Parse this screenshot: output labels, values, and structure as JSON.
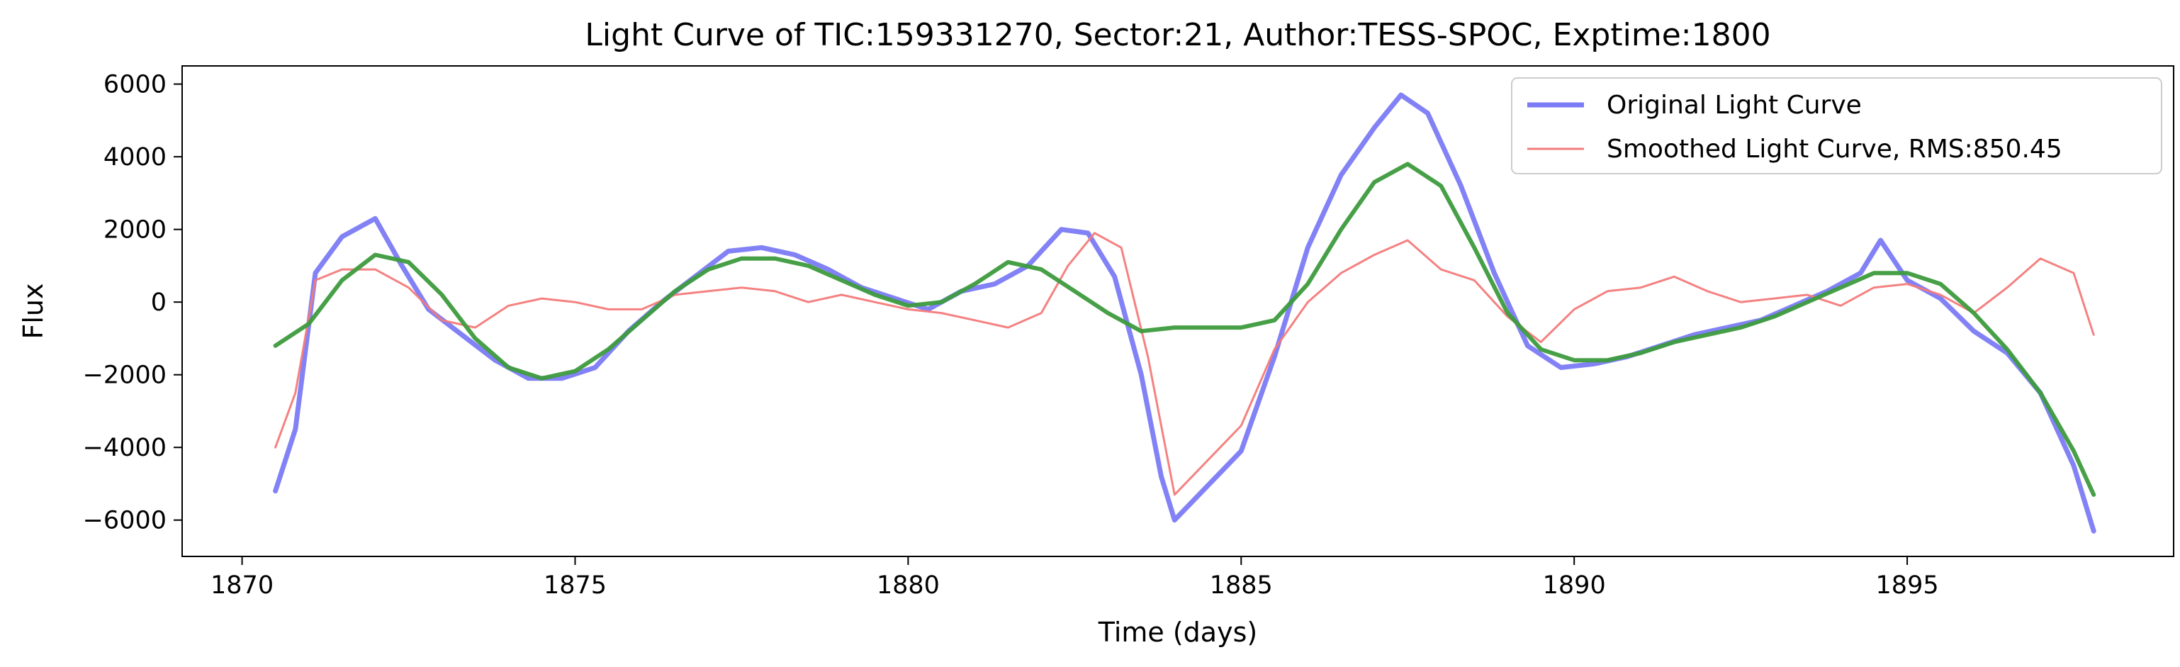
{
  "chart_data": {
    "type": "line",
    "title": "Light Curve of TIC:159331270, Sector:21, Author:TESS-SPOC, Exptime:1800",
    "xlabel": "Time (days)",
    "ylabel": "Flux",
    "xlim": [
      1869.1,
      1899.0
    ],
    "ylim": [
      -7000,
      6500
    ],
    "xticks": [
      1870,
      1875,
      1880,
      1885,
      1890,
      1895
    ],
    "yticks": [
      -6000,
      -4000,
      -2000,
      0,
      2000,
      4000,
      6000
    ],
    "xtick_labels": [
      "1870",
      "1875",
      "1880",
      "1885",
      "1890",
      "1895"
    ],
    "ytick_labels": [
      "−6000",
      "−4000",
      "−2000",
      "0",
      "2000",
      "4000",
      "6000"
    ],
    "grid": false,
    "legend_position": "top-right",
    "series": [
      {
        "name": "Original Light Curve",
        "color": "#7b7bf5",
        "style": "thick",
        "x": [
          1870.5,
          1870.8,
          1871.1,
          1871.5,
          1872.0,
          1872.4,
          1872.8,
          1873.3,
          1873.8,
          1874.3,
          1874.8,
          1875.3,
          1875.8,
          1876.3,
          1876.8,
          1877.3,
          1877.8,
          1878.3,
          1878.8,
          1879.3,
          1879.8,
          1880.3,
          1880.8,
          1881.3,
          1881.8,
          1882.3,
          1882.7,
          1883.1,
          1883.5,
          1883.8,
          1884.0,
          1885.0,
          1885.5,
          1886.0,
          1886.5,
          1887.0,
          1887.4,
          1887.8,
          1888.3,
          1888.8,
          1889.3,
          1889.8,
          1890.3,
          1890.8,
          1891.3,
          1891.8,
          1892.3,
          1892.8,
          1893.3,
          1893.8,
          1894.3,
          1894.6,
          1895.0,
          1895.5,
          1896.0,
          1896.5,
          1897.0,
          1897.5,
          1897.8
        ],
        "y": [
          -5200,
          -3500,
          800,
          1800,
          2300,
          1000,
          -200,
          -900,
          -1600,
          -2100,
          -2100,
          -1800,
          -800,
          0,
          700,
          1400,
          1500,
          1300,
          900,
          400,
          100,
          -200,
          300,
          500,
          1000,
          2000,
          1900,
          700,
          -2000,
          -4800,
          -6000,
          -4100,
          -1500,
          1500,
          3500,
          4800,
          5700,
          5200,
          3200,
          800,
          -1200,
          -1800,
          -1700,
          -1500,
          -1200,
          -900,
          -700,
          -500,
          -100,
          300,
          800,
          1700,
          600,
          100,
          -800,
          -1400,
          -2500,
          -4500,
          -6300
        ]
      },
      {
        "name": "Smoothed Light Curve, RMS:850.45",
        "color": "#f47a7a",
        "style": "thin",
        "x": [
          1870.5,
          1870.8,
          1871.1,
          1871.5,
          1872.0,
          1872.5,
          1873.0,
          1873.5,
          1874.0,
          1874.5,
          1875.0,
          1875.5,
          1876.0,
          1876.5,
          1877.0,
          1877.5,
          1878.0,
          1878.5,
          1879.0,
          1879.5,
          1880.0,
          1880.5,
          1881.0,
          1881.5,
          1882.0,
          1882.4,
          1882.8,
          1883.2,
          1883.6,
          1884.0,
          1885.0,
          1885.5,
          1886.0,
          1886.5,
          1887.0,
          1887.5,
          1888.0,
          1888.5,
          1889.0,
          1889.5,
          1890.0,
          1890.5,
          1891.0,
          1891.5,
          1892.0,
          1892.5,
          1893.0,
          1893.5,
          1894.0,
          1894.5,
          1895.0,
          1895.5,
          1896.0,
          1896.5,
          1897.0,
          1897.5,
          1897.8
        ],
        "y": [
          -4000,
          -2500,
          600,
          900,
          900,
          400,
          -500,
          -700,
          -100,
          100,
          0,
          -200,
          -200,
          200,
          300,
          400,
          300,
          0,
          200,
          0,
          -200,
          -300,
          -500,
          -700,
          -300,
          1000,
          1900,
          1500,
          -1500,
          -5300,
          -3400,
          -1300,
          0,
          800,
          1300,
          1700,
          900,
          600,
          -400,
          -1100,
          -200,
          300,
          400,
          700,
          300,
          0,
          100,
          200,
          -100,
          400,
          500,
          200,
          -300,
          400,
          1200,
          800,
          -900
        ]
      },
      {
        "name": "",
        "color": "#3d9b3d",
        "style": "medium",
        "x": [
          1870.5,
          1871.0,
          1871.5,
          1872.0,
          1872.5,
          1873.0,
          1873.5,
          1874.0,
          1874.5,
          1875.0,
          1875.5,
          1876.0,
          1876.5,
          1877.0,
          1877.5,
          1878.0,
          1878.5,
          1879.0,
          1879.5,
          1880.0,
          1880.5,
          1881.0,
          1881.5,
          1882.0,
          1882.5,
          1883.0,
          1883.5,
          1884.0,
          1884.5,
          1885.0,
          1885.5,
          1886.0,
          1886.5,
          1887.0,
          1887.5,
          1888.0,
          1888.5,
          1889.0,
          1889.5,
          1890.0,
          1890.5,
          1891.0,
          1891.5,
          1892.0,
          1892.5,
          1893.0,
          1893.5,
          1894.0,
          1894.5,
          1895.0,
          1895.5,
          1896.0,
          1896.5,
          1897.0,
          1897.5,
          1897.8
        ],
        "y": [
          -1200,
          -600,
          600,
          1300,
          1100,
          200,
          -1000,
          -1800,
          -2100,
          -1900,
          -1300,
          -500,
          300,
          900,
          1200,
          1200,
          1000,
          600,
          200,
          -100,
          0,
          500,
          1100,
          900,
          300,
          -300,
          -800,
          -700,
          -700,
          -700,
          -500,
          500,
          2000,
          3300,
          3800,
          3200,
          1500,
          -300,
          -1300,
          -1600,
          -1600,
          -1400,
          -1100,
          -900,
          -700,
          -400,
          0,
          400,
          800,
          800,
          500,
          -300,
          -1300,
          -2500,
          -4100,
          -5300
        ]
      }
    ]
  }
}
